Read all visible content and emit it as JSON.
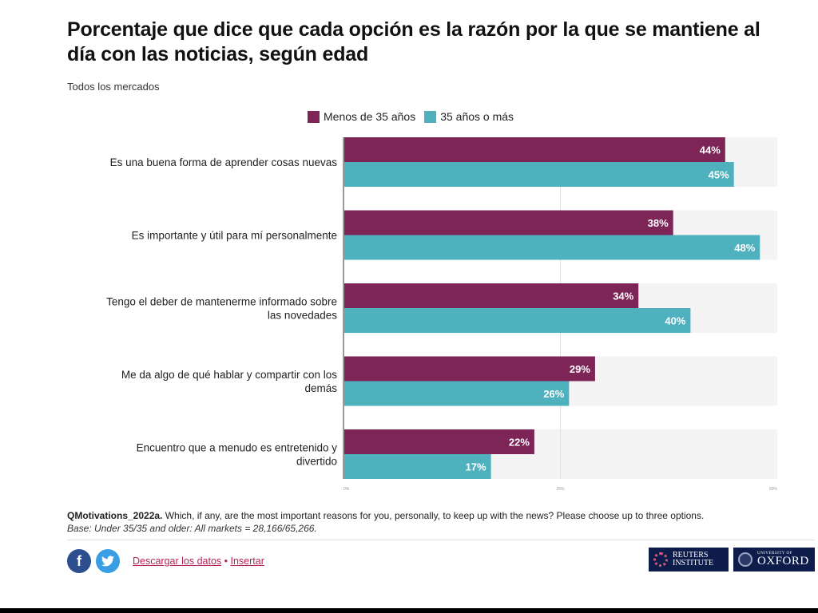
{
  "header": {
    "title": "Porcentaje que dice que cada opción es la razón por la que se mantiene al día con las noticias, según edad",
    "subtitle": "Todos los mercados"
  },
  "legend": [
    {
      "label": "Menos de 35 años",
      "color": "#7e2558"
    },
    {
      "label": "35 años o más",
      "color": "#4fb1be"
    }
  ],
  "chart_data": {
    "type": "bar",
    "orientation": "horizontal",
    "title": "Porcentaje que dice que cada opción es la razón por la que se mantiene al día con las noticias, según edad",
    "subtitle": "Todos los mercados",
    "categories": [
      [
        "Es una buena forma de aprender cosas nuevas"
      ],
      [
        "Es importante y útil para mí personalmente"
      ],
      [
        "Tengo el deber de mantenerme informado sobre",
        "las novedades"
      ],
      [
        "Me da algo de qué hablar y compartir con los",
        "demás"
      ],
      [
        "Encuentro que a menudo es entretenido y",
        "divertido"
      ]
    ],
    "series": [
      {
        "name": "Menos de 35 años",
        "color": "#7e2558",
        "values": [
          44,
          38,
          34,
          29,
          22
        ],
        "labels": [
          "44%",
          "38%",
          "34%",
          "29%",
          "22%"
        ]
      },
      {
        "name": "35 años o más",
        "color": "#4fb1be",
        "values": [
          45,
          48,
          40,
          26,
          17
        ],
        "labels": [
          "45%",
          "48%",
          "40%",
          "26%",
          "17%"
        ]
      }
    ],
    "xlim": [
      0,
      50
    ],
    "xticks": [
      "0%",
      "25%",
      "50%"
    ],
    "xlabel": "",
    "ylabel": "",
    "legend_position": "top-center",
    "grid": true,
    "band_color": "#f4f4f4"
  },
  "footnote": {
    "question_id": "QMotivations_2022a.",
    "question_text": " Which, if any, are the most important reasons for you, personally, to keep up with the news? Please choose up to three options.",
    "base": "Base: Under 35/35 and older: All markets = 28,166/65,266."
  },
  "footer": {
    "facebook_glyph": "f",
    "twitter_glyph": "🐦",
    "download_label": "Descargar los datos",
    "separator": " • ",
    "embed_label": "Insertar",
    "logos": {
      "reuters_line1": "REUTERS",
      "reuters_line2": "INSTITUTE",
      "oxford_small": "UNIVERSITY OF",
      "oxford_big": "OXFORD"
    }
  }
}
